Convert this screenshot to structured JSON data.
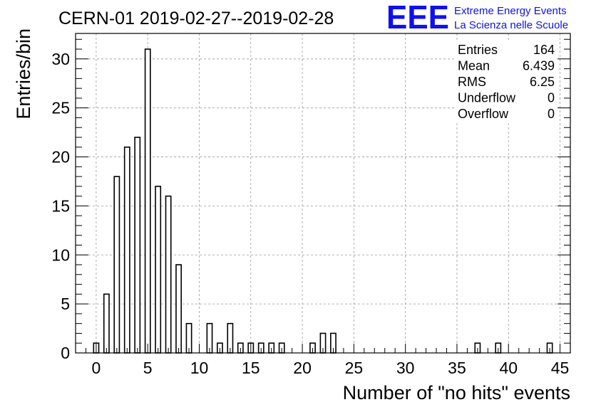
{
  "chart_data": {
    "type": "bar",
    "title": "CERN-01 2019-02-27--2019-02-28",
    "xlabel": "Number of \"no hits\" events",
    "ylabel": "Entries/bin",
    "xlim": [
      -2,
      46
    ],
    "ylim": [
      0,
      32.6
    ],
    "bin_width": 0.5,
    "grid": true,
    "x_ticks": [
      0,
      5,
      10,
      15,
      20,
      25,
      30,
      35,
      40,
      45
    ],
    "y_ticks": [
      0,
      5,
      10,
      15,
      20,
      25,
      30
    ],
    "bins": [
      {
        "x": 0,
        "value": 1
      },
      {
        "x": 1,
        "value": 6
      },
      {
        "x": 2,
        "value": 18
      },
      {
        "x": 3,
        "value": 21
      },
      {
        "x": 4,
        "value": 22
      },
      {
        "x": 5,
        "value": 31
      },
      {
        "x": 6,
        "value": 17
      },
      {
        "x": 7,
        "value": 16
      },
      {
        "x": 8,
        "value": 9
      },
      {
        "x": 9,
        "value": 3
      },
      {
        "x": 11,
        "value": 3
      },
      {
        "x": 12,
        "value": 1
      },
      {
        "x": 13,
        "value": 3
      },
      {
        "x": 14,
        "value": 1
      },
      {
        "x": 15,
        "value": 1
      },
      {
        "x": 16,
        "value": 1
      },
      {
        "x": 17,
        "value": 1
      },
      {
        "x": 18,
        "value": 1
      },
      {
        "x": 21,
        "value": 1
      },
      {
        "x": 22,
        "value": 2
      },
      {
        "x": 23,
        "value": 2
      },
      {
        "x": 37,
        "value": 1
      },
      {
        "x": 39,
        "value": 1
      },
      {
        "x": 44,
        "value": 1
      }
    ],
    "stats": [
      {
        "label": "Entries",
        "value": "164"
      },
      {
        "label": "Mean",
        "value": "6.439"
      },
      {
        "label": "RMS",
        "value": "6.25"
      },
      {
        "label": "Underflow",
        "value": "0"
      },
      {
        "label": "Overflow",
        "value": "0"
      }
    ],
    "colors": {
      "bar_fill": "#ffffff",
      "bar_stroke": "#000000",
      "grid": "#9a9a9a",
      "logo": "#1010ee"
    }
  },
  "logo": {
    "mark": "EEE",
    "line1": "Extreme Energy Events",
    "line2": "La Scienza nelle Scuole"
  }
}
